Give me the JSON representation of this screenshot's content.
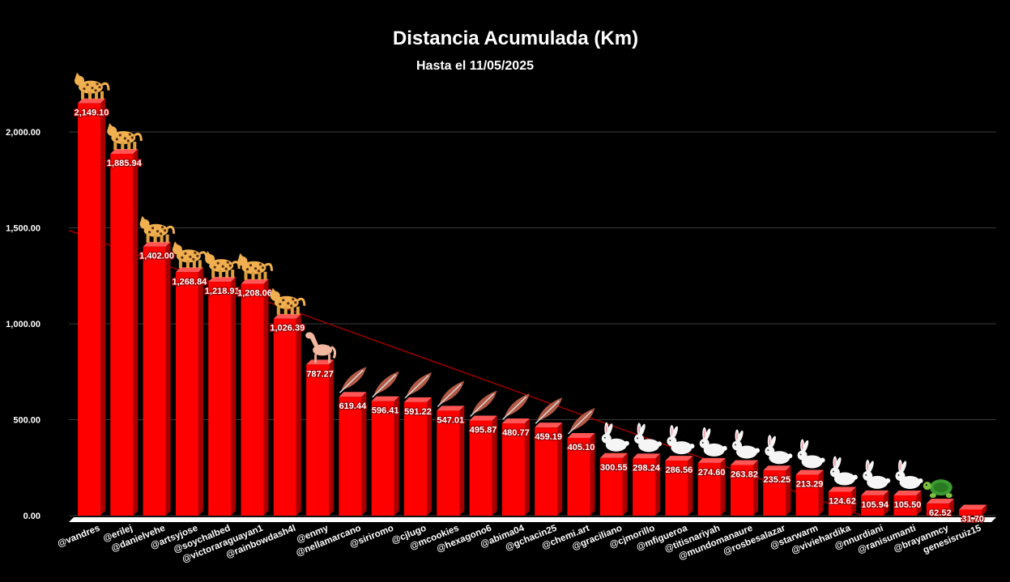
{
  "chart_data": {
    "type": "bar",
    "title": "Distancia Acumulada (Km)",
    "subtitle": "Hasta el 11/05/2025",
    "ylim": [
      0,
      2250
    ],
    "yticks": [
      0,
      500,
      1000,
      1500,
      2000
    ],
    "ytick_labels": [
      "0.00",
      "500.00",
      "1,000.00",
      "1,500.00",
      "2,000.00"
    ],
    "grid": true,
    "legend": "none",
    "trendline": true,
    "categories": [
      "@vandres",
      "@erilej",
      "@danielvehe",
      "@artsyjose",
      "@soychalbed",
      "@victoraraguayan1",
      "@rainbowdash4l",
      "@enmy",
      "@nellamarcano",
      "@siriromo",
      "@cjlugo",
      "@mcookies",
      "@hexagono6",
      "@abima04",
      "@gchacin25",
      "@chemi.art",
      "@graciliano",
      "@cjmorillo",
      "@mfigueroa",
      "@titisnariyah",
      "@mundomanaure",
      "@rosbesalazar",
      "@starwarm",
      "@viviehardika",
      "@nnurdiani",
      "@ranisumanti",
      "@brayanmcy",
      "genesisruiz15"
    ],
    "values": [
      2149.1,
      1885.94,
      1402.0,
      1268.84,
      1218.91,
      1208.06,
      1026.39,
      787.27,
      619.44,
      596.41,
      591.22,
      547.01,
      495.87,
      480.77,
      459.19,
      405.1,
      300.55,
      298.24,
      286.56,
      274.6,
      263.82,
      235.25,
      213.29,
      124.62,
      105.94,
      105.5,
      62.52,
      31.7
    ],
    "data_labels": [
      "2,149.10",
      "1,885.94",
      "1,402.00",
      "1,268.84",
      "1,218.91",
      "1,208.06",
      "1,026.39",
      "787.27",
      "619.44",
      "596.41",
      "591.22",
      "547.01",
      "495.87",
      "480.77",
      "459.19",
      "405.10",
      "300.55",
      "298.24",
      "286.56",
      "274.60",
      "263.82",
      "235.25",
      "213.29",
      "124.62",
      "105.94",
      "105.50",
      "62.52",
      "31.70"
    ],
    "markers": [
      "leopard-icon",
      "leopard-icon",
      "leopard-icon",
      "leopard-icon",
      "leopard-icon",
      "leopard-icon",
      "leopard-icon",
      "horse-icon",
      "feather-icon",
      "feather-icon",
      "feather-icon",
      "feather-icon",
      "feather-icon",
      "feather-icon",
      "feather-icon",
      "feather-icon",
      "rabbit-icon",
      "rabbit-icon",
      "rabbit-icon",
      "rabbit-icon",
      "rabbit-icon",
      "rabbit-icon",
      "rabbit-icon",
      "rabbit-icon",
      "rabbit-icon",
      "rabbit-icon",
      "turtle-icon",
      ""
    ],
    "colors": {
      "bar": "#ff0000",
      "bar_side": "#a80000",
      "bar_top": "#ff5555",
      "grid": "#3a3a3a",
      "trend": "#9b0000"
    }
  }
}
